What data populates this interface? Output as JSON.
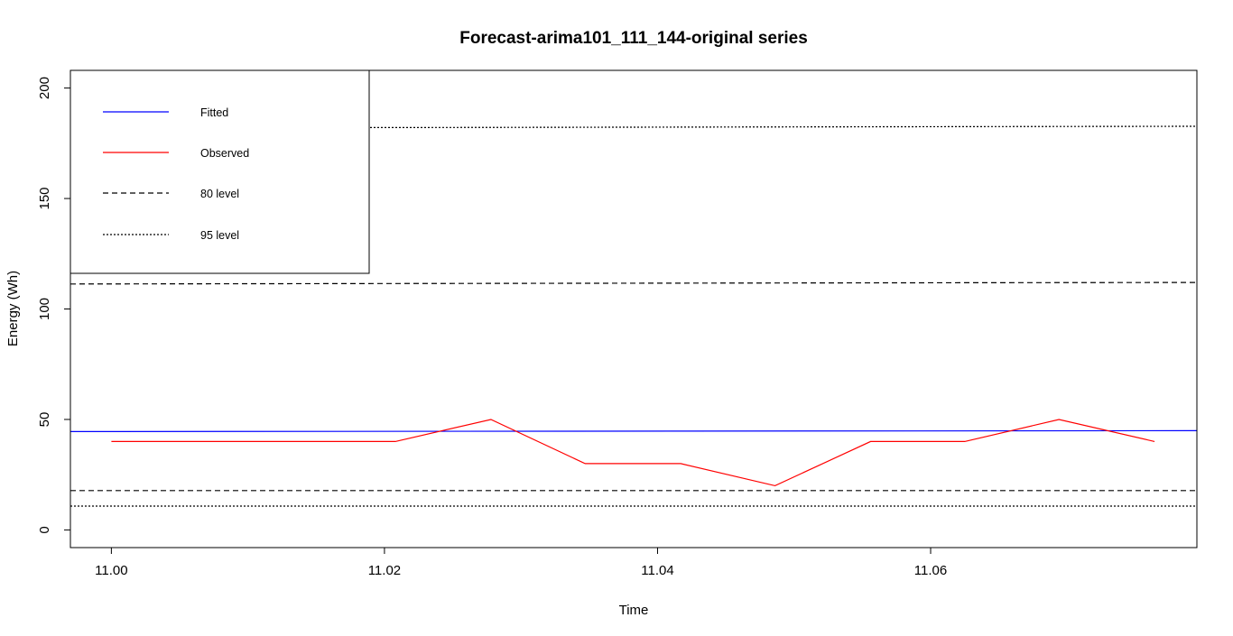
{
  "chart_data": {
    "type": "line",
    "title": "Forecast-arima101_111_144-original series",
    "xlabel": "Time",
    "ylabel": "Energy (Wh)",
    "xlim": [
      10.997,
      11.0795
    ],
    "ylim": [
      -8,
      208
    ],
    "x_ticks": [
      "11.00",
      "11.02",
      "11.04",
      "11.06"
    ],
    "x_tick_values": [
      11.0,
      11.02,
      11.04,
      11.06
    ],
    "y_ticks": [
      "0",
      "50",
      "100",
      "150",
      "200"
    ],
    "y_tick_values": [
      0,
      50,
      100,
      150,
      200
    ],
    "grid": false,
    "legend": {
      "placement": "top-left",
      "entries": [
        {
          "label": "Fitted",
          "color": "#0000ff",
          "style": "solid"
        },
        {
          "label": "Observed",
          "color": "#ff0000",
          "style": "solid"
        },
        {
          "label": "80 level",
          "color": "#000000",
          "style": "dashed"
        },
        {
          "label": "95 level",
          "color": "#000000",
          "style": "dotted"
        }
      ]
    },
    "series": [
      {
        "key": "fitted",
        "color": "#0000ff",
        "style": "solid",
        "x": [
          10.997,
          11.0413,
          11.0795
        ],
        "values": [
          44.5,
          44.7,
          44.9
        ]
      },
      {
        "key": "observed",
        "color": "#ff0000",
        "style": "solid",
        "x": [
          11.0,
          11.0208,
          11.0278,
          11.0347,
          11.0417,
          11.0486,
          11.0556,
          11.0625,
          11.0694,
          11.0764
        ],
        "values": [
          40,
          40,
          50,
          30,
          30,
          20,
          40,
          40,
          50,
          40
        ]
      },
      {
        "key": "upper80",
        "color": "#000000",
        "style": "dashed",
        "x": [
          10.997,
          11.0208,
          11.0625,
          11.0795
        ],
        "values": [
          111.3,
          111.5,
          111.9,
          112.0
        ]
      },
      {
        "key": "lower80",
        "color": "#000000",
        "style": "dashed",
        "x": [
          10.997,
          11.0795
        ],
        "values": [
          17.8,
          17.8
        ]
      },
      {
        "key": "upper95",
        "color": "#000000",
        "style": "dotted",
        "x": [
          10.997,
          11.0208,
          11.0417,
          11.0694,
          11.0795
        ],
        "values": [
          182.1,
          182.1,
          182.3,
          182.6,
          182.7
        ]
      },
      {
        "key": "lower95",
        "color": "#000000",
        "style": "dotted",
        "x": [
          10.997,
          11.0795
        ],
        "values": [
          10.8,
          10.8
        ]
      }
    ]
  }
}
